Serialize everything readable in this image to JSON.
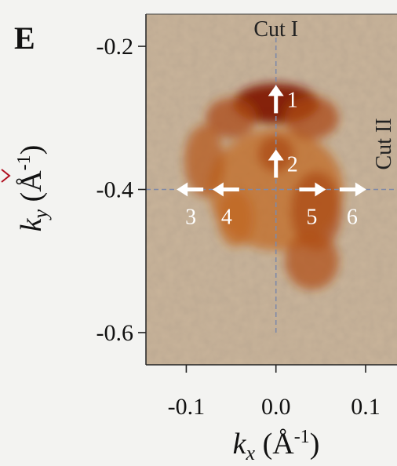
{
  "panel_label": "E",
  "colors": {
    "background": "#f3f3f1",
    "map_base": "#c9b49a",
    "intensity_low": "#e8952e",
    "intensity_high": "#7a0e02",
    "cut_line": "#7f8aa8",
    "arrow": "#ffffff",
    "axis": "#222222"
  },
  "chart_data": {
    "type": "heatmap",
    "title": "",
    "xlabel": "k_x (Å^-1)",
    "ylabel": "k_y (Å^-1)",
    "xlabel_parts": {
      "main": "k",
      "sub": "x",
      "unit": " (Å",
      "sup": "-1",
      "close": ")"
    },
    "ylabel_parts": {
      "main": "k",
      "sub": "y",
      "unit": " (Å",
      "sup": "-1",
      "close": ")"
    },
    "xlim": [
      -0.145,
      0.135
    ],
    "ylim": [
      -0.645,
      -0.155
    ],
    "xticks": [
      {
        "value": -0.1,
        "label": "-0.1"
      },
      {
        "value": 0.0,
        "label": "0.0"
      },
      {
        "value": 0.1,
        "label": "0.1"
      }
    ],
    "yticks": [
      {
        "value": -0.2,
        "label": "-0.2"
      },
      {
        "value": -0.4,
        "label": "-0.4"
      },
      {
        "value": -0.6,
        "label": "-0.6"
      }
    ],
    "grid": false,
    "intensity_features": [
      {
        "kx": 0.0,
        "ky": -0.4,
        "sx": 0.075,
        "sy": 0.085,
        "w": 0.35
      },
      {
        "kx": 0.0,
        "ky": -0.28,
        "sx": 0.048,
        "sy": 0.028,
        "w": 0.95
      },
      {
        "kx": -0.05,
        "ky": -0.3,
        "sx": 0.028,
        "sy": 0.028,
        "w": 0.55
      },
      {
        "kx": 0.04,
        "ky": -0.3,
        "sx": 0.03,
        "sy": 0.03,
        "w": 0.55
      },
      {
        "kx": -0.08,
        "ky": -0.36,
        "sx": 0.022,
        "sy": 0.05,
        "w": 0.45
      },
      {
        "kx": 0.0,
        "ky": -0.35,
        "sx": 0.02,
        "sy": 0.025,
        "w": 0.55
      },
      {
        "kx": 0.045,
        "ky": -0.43,
        "sx": 0.028,
        "sy": 0.055,
        "w": 0.55
      },
      {
        "kx": 0.04,
        "ky": -0.5,
        "sx": 0.03,
        "sy": 0.04,
        "w": 0.5
      },
      {
        "kx": -0.045,
        "ky": -0.44,
        "sx": 0.02,
        "sy": 0.04,
        "w": 0.35
      }
    ],
    "cuts": [
      {
        "name": "Cut I",
        "orientation": "vertical",
        "kx": 0.0,
        "ky_range": [
          -0.645,
          -0.61
        ]
      },
      {
        "name": "Cut II",
        "orientation": "horizontal",
        "ky": -0.4,
        "kx_range": [
          -0.145,
          0.135
        ]
      }
    ],
    "arrows": [
      {
        "label": "1",
        "kx": 0.0,
        "ky": -0.265,
        "direction": "up"
      },
      {
        "label": "2",
        "kx": 0.0,
        "ky": -0.355,
        "direction": "up"
      },
      {
        "label": "3",
        "kx": -0.095,
        "ky": -0.4,
        "direction": "left"
      },
      {
        "label": "4",
        "kx": -0.055,
        "ky": -0.4,
        "direction": "left"
      },
      {
        "label": "5",
        "kx": 0.04,
        "ky": -0.4,
        "direction": "right"
      },
      {
        "label": "6",
        "kx": 0.085,
        "ky": -0.4,
        "direction": "right"
      }
    ]
  }
}
